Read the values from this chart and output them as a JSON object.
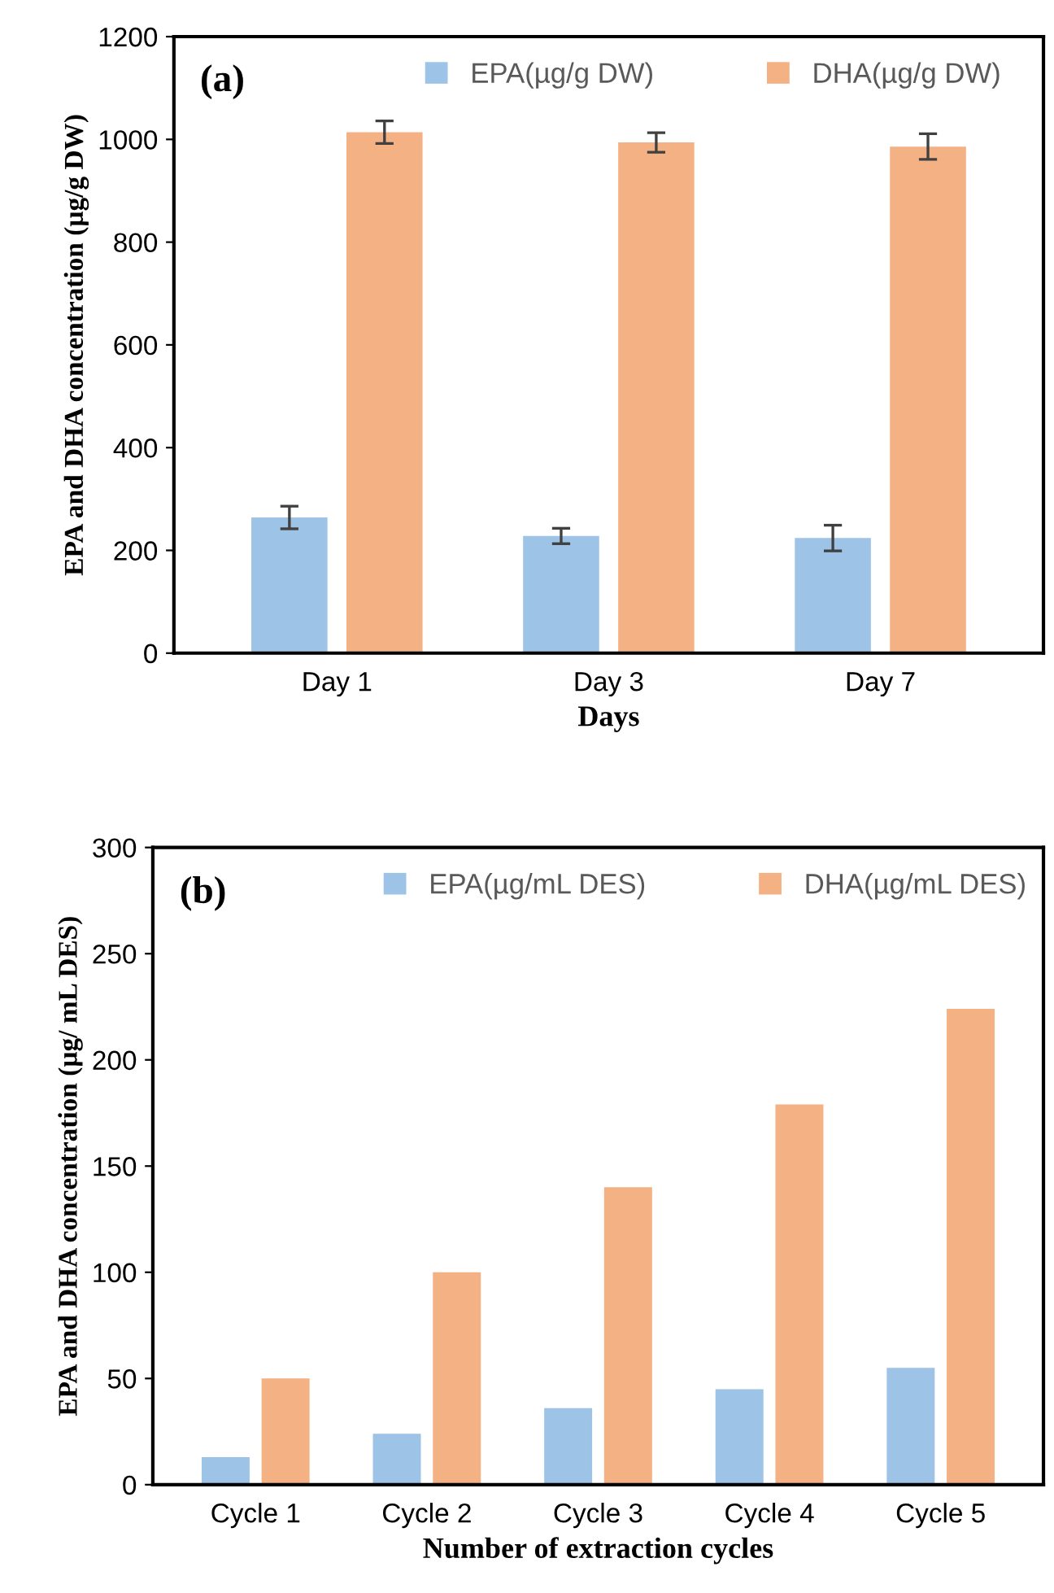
{
  "chart_data": [
    {
      "type": "bar",
      "xlabel": "Days",
      "ylabel": "EPA and DHA concentration (µg/g DW)",
      "annotations": [
        "(a)"
      ],
      "categories": [
        "Day 1",
        "Day 3",
        "Day 7"
      ],
      "series": [
        {
          "name": "EPA(µg/g DW)",
          "color": "#9dc3e6",
          "values": [
            264,
            228,
            224
          ],
          "errors": [
            22,
            15,
            25
          ]
        },
        {
          "name": "DHA(µg/g DW)",
          "color": "#f4b183",
          "values": [
            1014,
            994,
            986
          ],
          "errors": [
            22,
            19,
            25
          ]
        }
      ],
      "ylim": [
        0,
        1200
      ],
      "yticks": [
        0,
        200,
        400,
        600,
        800,
        1000,
        1200
      ],
      "grid": false,
      "legend": "top"
    },
    {
      "type": "bar",
      "xlabel": "Number of extraction cycles",
      "ylabel": "EPA and DHA concentration (µg/ mL DES)",
      "annotations": [
        "(b)"
      ],
      "categories": [
        "Cycle 1",
        "Cycle 2",
        "Cycle 3",
        "Cycle 4",
        "Cycle 5"
      ],
      "series": [
        {
          "name": "EPA(µg/mL DES)",
          "color": "#9dc3e6",
          "values": [
            13,
            24,
            36,
            45,
            55
          ]
        },
        {
          "name": "DHA(µg/mL DES)",
          "color": "#f4b183",
          "values": [
            50,
            100,
            140,
            179,
            224
          ]
        }
      ],
      "ylim": [
        0,
        300
      ],
      "yticks": [
        0,
        50,
        100,
        150,
        200,
        250,
        300
      ],
      "grid": false,
      "legend": "top"
    }
  ]
}
